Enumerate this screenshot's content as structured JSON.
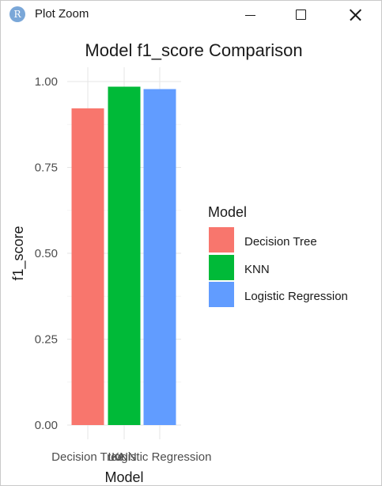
{
  "window": {
    "title": "Plot Zoom",
    "app_icon_letter": "R",
    "app_icon": "r-logo-icon",
    "minimize_icon": "minimize-icon",
    "maximize_icon": "maximize-icon",
    "close_icon": "close-icon"
  },
  "chart_data": {
    "type": "bar",
    "title": "Model f1_score Comparison",
    "xlabel": "Model",
    "ylabel": "f1_score",
    "categories": [
      "Decision Tree",
      "KNN",
      "Logistic Regression"
    ],
    "values": [
      0.922,
      0.985,
      0.978
    ],
    "colors": [
      "#F8766D",
      "#00BA38",
      "#619CFF"
    ],
    "ylim": [
      0,
      1.04
    ],
    "yticks": [
      {
        "value": 0.0,
        "label": "0.00"
      },
      {
        "value": 0.25,
        "label": "0.25"
      },
      {
        "value": 0.5,
        "label": "0.50"
      },
      {
        "value": 0.75,
        "label": "0.75"
      },
      {
        "value": 1.0,
        "label": "1.00"
      }
    ],
    "grid": true,
    "legend": {
      "title": "Model",
      "placement": "right",
      "entries": [
        "Decision Tree",
        "KNN",
        "Logistic Regression"
      ]
    }
  }
}
